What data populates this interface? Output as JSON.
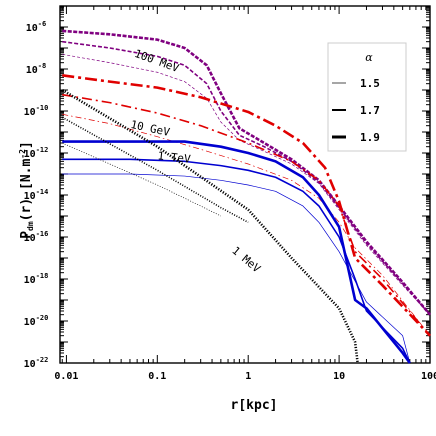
{
  "chart_data": {
    "type": "line",
    "xscale": "log",
    "yscale": "log",
    "xlim": [
      0.0085,
      100
    ],
    "ylim": [
      1e-22,
      1e-05
    ],
    "xlabel": "r[kpc]",
    "ylabel_main": "P",
    "ylabel_sub": "dm",
    "ylabel_rest": "(r)  [N.m",
    "ylabel_exp": "-2",
    "ylabel_end": "]",
    "x_ticks": [
      {
        "value": 0.01,
        "label": "0.01"
      },
      {
        "value": 0.1,
        "label": "0.1"
      },
      {
        "value": 1,
        "label": "1"
      },
      {
        "value": 10,
        "label": "10"
      },
      {
        "value": 100,
        "label": "100"
      }
    ],
    "y_ticks": [
      {
        "value": 1e-06,
        "base": "10",
        "exp": "-6"
      },
      {
        "value": 1e-08,
        "base": "10",
        "exp": "-8"
      },
      {
        "value": 1e-10,
        "base": "10",
        "exp": "-10"
      },
      {
        "value": 1e-12,
        "base": "10",
        "exp": "-12"
      },
      {
        "value": 1e-14,
        "base": "10",
        "exp": "-14"
      },
      {
        "value": 1e-16,
        "base": "10",
        "exp": "-16"
      },
      {
        "value": 1e-18,
        "base": "10",
        "exp": "-18"
      },
      {
        "value": 1e-20,
        "base": "10",
        "exp": "-20"
      },
      {
        "value": 1e-22,
        "base": "10",
        "exp": "-22"
      }
    ],
    "legend": {
      "title": "α",
      "entries": [
        {
          "label": "1.5",
          "weight": "thin"
        },
        {
          "label": "1.7",
          "weight": "medium"
        },
        {
          "label": "1.9",
          "weight": "thick"
        }
      ]
    },
    "annotations": [
      {
        "text": "100 MeV",
        "x": 0.055,
        "y": 4e-08,
        "rotation": 20
      },
      {
        "text": "10 GeV",
        "x": 0.05,
        "y": 1.6e-11,
        "rotation": 12
      },
      {
        "text": "1 TeV",
        "x": 0.1,
        "y": 5e-13,
        "rotation": 6
      },
      {
        "text": "1 MeV",
        "x": 0.65,
        "y": 2e-17,
        "rotation": 40
      }
    ],
    "series": [
      {
        "group": "100 MeV",
        "alpha": "1.5",
        "color": "#800080",
        "style": "dashed",
        "weight": "thin",
        "points": [
          [
            0.009,
            5e-08
          ],
          [
            0.03,
            2e-08
          ],
          [
            0.1,
            7e-09
          ],
          [
            0.2,
            2.5e-09
          ],
          [
            0.35,
            4e-10
          ],
          [
            0.5,
            3e-11
          ],
          [
            0.8,
            4e-12
          ],
          [
            1.5,
            1.2e-12
          ],
          [
            3,
            3e-13
          ],
          [
            6,
            3.5e-14
          ],
          [
            10,
            2e-15
          ],
          [
            20,
            4e-17
          ],
          [
            50,
            5e-19
          ],
          [
            100,
            2e-20
          ]
        ]
      },
      {
        "group": "100 MeV",
        "alpha": "1.7",
        "color": "#800080",
        "style": "dashed",
        "weight": "medium",
        "points": [
          [
            0.009,
            2e-07
          ],
          [
            0.03,
            1e-07
          ],
          [
            0.1,
            4e-08
          ],
          [
            0.2,
            1.5e-08
          ],
          [
            0.35,
            2e-09
          ],
          [
            0.5,
            1e-10
          ],
          [
            0.8,
            7e-12
          ],
          [
            1.5,
            2e-12
          ],
          [
            3,
            4e-13
          ],
          [
            6,
            4e-14
          ],
          [
            10,
            2.5e-15
          ],
          [
            20,
            5e-17
          ],
          [
            50,
            6e-19
          ],
          [
            100,
            2e-20
          ]
        ]
      },
      {
        "group": "100 MeV",
        "alpha": "1.9",
        "color": "#800080",
        "style": "dashed",
        "weight": "thick",
        "points": [
          [
            0.009,
            6.5e-07
          ],
          [
            0.03,
            4.5e-07
          ],
          [
            0.1,
            2.5e-07
          ],
          [
            0.2,
            1e-07
          ],
          [
            0.35,
            1.5e-08
          ],
          [
            0.5,
            7e-10
          ],
          [
            0.8,
            1.5e-11
          ],
          [
            1.5,
            3e-12
          ],
          [
            3,
            5e-13
          ],
          [
            6,
            5e-14
          ],
          [
            10,
            3e-15
          ],
          [
            20,
            6e-17
          ],
          [
            50,
            7e-19
          ],
          [
            100,
            2e-20
          ]
        ]
      },
      {
        "group": "10 GeV",
        "alpha": "1.5",
        "color": "#e00000",
        "style": "dashdot",
        "weight": "thin",
        "points": [
          [
            0.009,
            7e-11
          ],
          [
            0.03,
            2.5e-11
          ],
          [
            0.1,
            6e-12
          ],
          [
            0.3,
            1.5e-12
          ],
          [
            1,
            3e-13
          ],
          [
            3,
            5e-14
          ],
          [
            6,
            7e-15
          ],
          [
            10,
            5e-16
          ],
          [
            15,
            3e-17
          ],
          [
            30,
            1.5e-18
          ],
          [
            100,
            2e-21
          ]
        ]
      },
      {
        "group": "10 GeV",
        "alpha": "1.7",
        "color": "#e00000",
        "style": "dashdot",
        "weight": "medium",
        "points": [
          [
            0.009,
            6e-10
          ],
          [
            0.03,
            2.5e-10
          ],
          [
            0.1,
            8e-11
          ],
          [
            0.3,
            2e-11
          ],
          [
            1,
            3e-12
          ],
          [
            3,
            4e-13
          ],
          [
            6,
            5e-14
          ],
          [
            10,
            3e-15
          ],
          [
            15,
            2e-17
          ],
          [
            30,
            1e-18
          ],
          [
            100,
            2e-21
          ]
        ]
      },
      {
        "group": "10 GeV",
        "alpha": "1.9",
        "color": "#e00000",
        "style": "dashdot",
        "weight": "thick",
        "points": [
          [
            0.009,
            5e-09
          ],
          [
            0.03,
            2.5e-09
          ],
          [
            0.1,
            1.3e-09
          ],
          [
            0.3,
            4.5e-10
          ],
          [
            1,
            9e-11
          ],
          [
            2,
            2e-11
          ],
          [
            4,
            3e-12
          ],
          [
            7,
            2e-13
          ],
          [
            10,
            5e-15
          ],
          [
            15,
            1e-17
          ],
          [
            30,
            5e-19
          ],
          [
            100,
            2e-21
          ]
        ]
      },
      {
        "group": "1 TeV",
        "alpha": "1.5",
        "color": "#0000d0",
        "style": "solid",
        "weight": "thin",
        "points": [
          [
            0.009,
            1e-13
          ],
          [
            0.05,
            1e-13
          ],
          [
            0.2,
            8e-14
          ],
          [
            0.5,
            5e-14
          ],
          [
            1,
            3e-14
          ],
          [
            2,
            1.5e-14
          ],
          [
            4,
            3e-15
          ],
          [
            6,
            5e-16
          ],
          [
            10,
            2e-17
          ],
          [
            20,
            8e-20
          ],
          [
            50,
            2e-21
          ],
          [
            60,
            1e-22
          ]
        ]
      },
      {
        "group": "1 TeV",
        "alpha": "1.7",
        "color": "#0000d0",
        "style": "solid",
        "weight": "medium",
        "points": [
          [
            0.009,
            5e-13
          ],
          [
            0.05,
            5e-13
          ],
          [
            0.2,
            4e-13
          ],
          [
            0.5,
            2.5e-13
          ],
          [
            1,
            1.5e-13
          ],
          [
            2,
            7e-14
          ],
          [
            4,
            1.5e-14
          ],
          [
            6,
            3e-15
          ],
          [
            10,
            1e-16
          ],
          [
            15,
            1e-18
          ],
          [
            20,
            3e-20
          ],
          [
            50,
            5e-22
          ],
          [
            60,
            1e-22
          ]
        ]
      },
      {
        "group": "1 TeV",
        "alpha": "1.9",
        "color": "#0000d0",
        "style": "solid",
        "weight": "thick",
        "points": [
          [
            0.009,
            3.5e-12
          ],
          [
            0.05,
            3.5e-12
          ],
          [
            0.2,
            3.5e-12
          ],
          [
            0.5,
            2e-12
          ],
          [
            1,
            1e-12
          ],
          [
            2,
            4e-13
          ],
          [
            4,
            7e-14
          ],
          [
            6,
            1e-14
          ],
          [
            10,
            3e-16
          ],
          [
            15,
            1e-19
          ],
          [
            20,
            4e-20
          ],
          [
            50,
            3e-22
          ],
          [
            60,
            1e-22
          ]
        ]
      },
      {
        "group": "1 MeV",
        "alpha": "1.5",
        "color": "#000000",
        "style": "dotted",
        "weight": "thin",
        "points": [
          [
            0.009,
            3e-12
          ],
          [
            0.1,
            3e-14
          ],
          [
            0.3,
            3e-15
          ],
          [
            0.5,
            1e-15
          ]
        ]
      },
      {
        "group": "1 MeV",
        "alpha": "1.7",
        "color": "#000000",
        "style": "dotted",
        "weight": "medium",
        "points": [
          [
            0.009,
            5e-11
          ],
          [
            0.1,
            1.5e-13
          ],
          [
            0.5,
            2.5e-15
          ],
          [
            1,
            5e-16
          ]
        ]
      },
      {
        "group": "1 MeV",
        "alpha": "1.9",
        "color": "#000000",
        "style": "dotted",
        "weight": "thick",
        "points": [
          [
            0.009,
            1e-09
          ],
          [
            0.1,
            2e-12
          ],
          [
            1,
            2e-15
          ],
          [
            3,
            1e-17
          ],
          [
            10,
            4e-20
          ],
          [
            15,
            1e-21
          ],
          [
            16,
            1e-22
          ]
        ]
      }
    ]
  }
}
